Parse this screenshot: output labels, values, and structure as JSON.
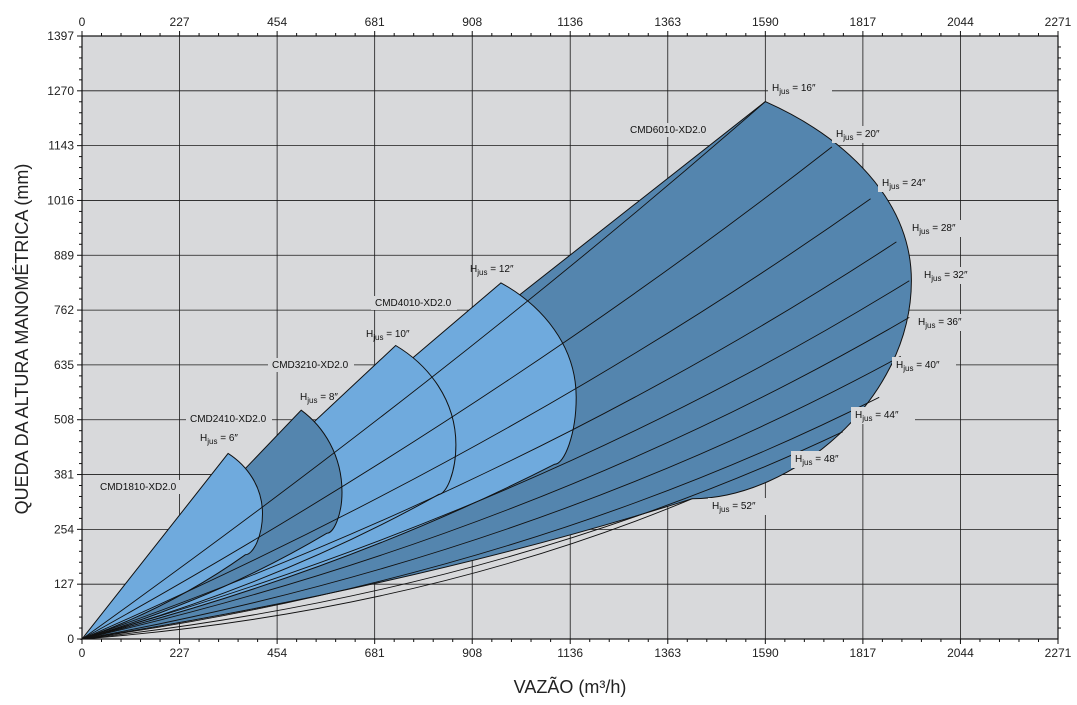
{
  "chart_data": {
    "type": "area",
    "xlabel": "VAZÃO (m³/h)",
    "ylabel": "QUEDA DA ALTURA MANOMÉTRICA (mm)",
    "xlim": [
      0,
      2271
    ],
    "ylim": [
      0,
      1397
    ],
    "xticks": [
      "0",
      "227",
      "454",
      "681",
      "908",
      "1136",
      "1363",
      "1590",
      "1817",
      "2044",
      "2271"
    ],
    "top_xticks": [
      "0",
      "227",
      "454",
      "681",
      "908",
      "1136",
      "1363",
      "1590",
      "1817",
      "2044",
      "2271"
    ],
    "yticks": [
      "0",
      "127",
      "254",
      "381",
      "508",
      "635",
      "762",
      "889",
      "1016",
      "1143",
      "1270",
      "1397"
    ],
    "grid": true,
    "colors": {
      "plot_bg": "#d8d9db",
      "light_region": "#6faadd",
      "dark_region": "#5485ae",
      "grid": "#1a1a1a",
      "curve": "#111111"
    },
    "models": [
      {
        "name": "CMD1810-XD2.0",
        "hjus": "6″",
        "color": "light",
        "peak": [
          340,
          430
        ],
        "bulge": [
          420,
          290
        ],
        "end": [
          380,
          195
        ]
      },
      {
        "name": "CMD2410-XD2.0",
        "hjus": "8″",
        "color": "dark",
        "peak": [
          510,
          530
        ],
        "bulge": [
          605,
          340
        ],
        "end": [
          570,
          245
        ]
      },
      {
        "name": "CMD3210-XD2.0",
        "hjus": "10″",
        "color": "light",
        "peak": [
          730,
          680
        ],
        "bulge": [
          870,
          450
        ],
        "end": [
          830,
          335
        ]
      },
      {
        "name": "CMD4010-XD2.0",
        "hjus": "12″",
        "color": "light",
        "peak": [
          975,
          825
        ],
        "bulge": [
          1150,
          560
        ],
        "end": [
          1100,
          405
        ]
      },
      {
        "name": "CMD6010-XD2.0",
        "hjus": "16″",
        "color": "dark",
        "peak": [
          1590,
          1245
        ],
        "bulge": [
          1930,
          830
        ],
        "end": [
          1420,
          325
        ]
      }
    ],
    "hjus_series": [
      {
        "label": "16″",
        "end": [
          1590,
          1245
        ]
      },
      {
        "label": "20″",
        "end": [
          1745,
          1140
        ]
      },
      {
        "label": "24″",
        "end": [
          1835,
          1020
        ]
      },
      {
        "label": "28″",
        "end": [
          1895,
          920
        ]
      },
      {
        "label": "32″",
        "end": [
          1925,
          830
        ]
      },
      {
        "label": "36″",
        "end": [
          1925,
          745
        ]
      },
      {
        "label": "40″",
        "end": [
          1905,
          655
        ]
      },
      {
        "label": "44″",
        "end": [
          1855,
          560
        ]
      },
      {
        "label": "48″",
        "end": [
          1770,
          480
        ]
      },
      {
        "label": "52″",
        "end": [
          1420,
          325
        ]
      }
    ],
    "hjus_prefix": "H",
    "hjus_sub": "jus",
    "hjus_eq": " = "
  }
}
